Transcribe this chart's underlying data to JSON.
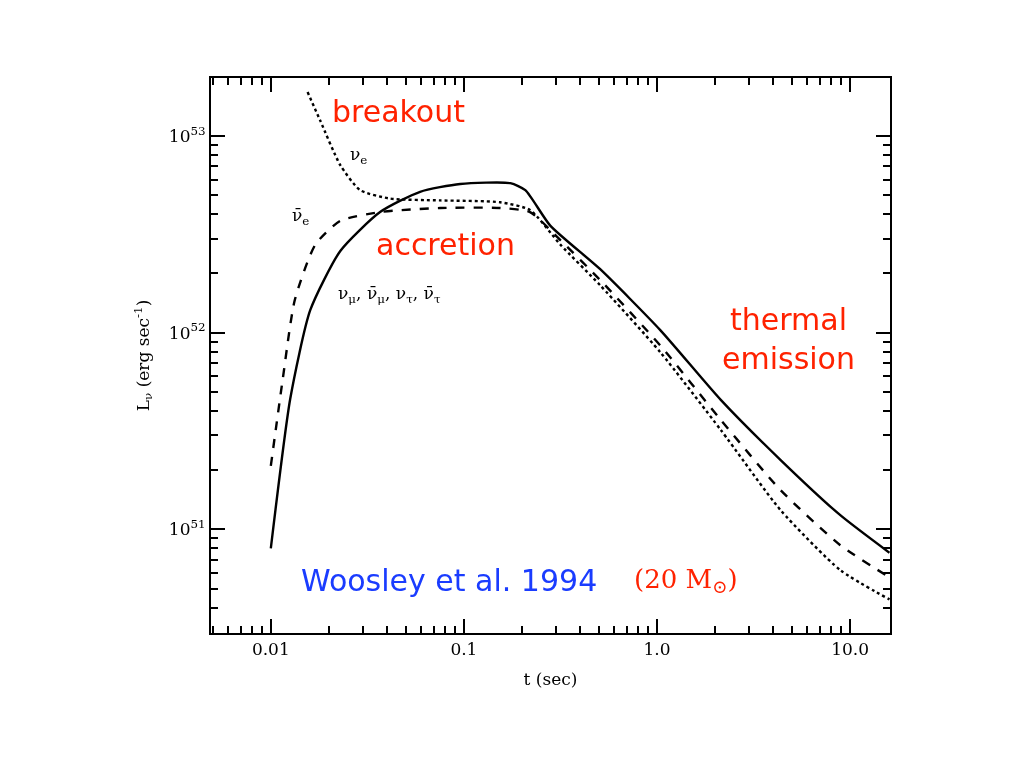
{
  "chart_data": {
    "type": "line",
    "xlabel": "t (sec)",
    "ylabel": "L$_{ν}$ (erg sec$^{-1}$)",
    "log": "xy",
    "legend": false,
    "marker": "none",
    "xlim": [
      0.0049,
      16.1
    ],
    "ylim": [
      2.97e+50,
      1.97e+53
    ],
    "xticks": [
      0.01,
      0.1,
      {
        "value": 1,
        "label": "1.0"
      },
      {
        "value": 10,
        "label": "10.0"
      }
    ],
    "yticks": [
      {
        "value": 1e+51,
        "label": "10$^{51}$"
      },
      {
        "value": 1e+52,
        "label": "10$^{52}$"
      },
      {
        "value": 1e+53,
        "label": "10$^{53}$"
      }
    ],
    "series": [
      {
        "name": "ν$_{e}$",
        "color": "#000000",
        "line_style": "dotted",
        "x": [
          0.0155,
          0.018,
          0.0229,
          0.029,
          0.0415,
          0.0753,
          0.154,
          0.22,
          0.316,
          0.508,
          1.04,
          2.14,
          4.37,
          8.9,
          16.0
        ],
        "values": [
          1.67e+53,
          1.2e+53,
          7.1e+52,
          5.3e+52,
          4.8e+52,
          4.7e+52,
          4.6e+52,
          4.2e+52,
          2.8e+52,
          1.74e+52,
          7.95e+51,
          3.2e+51,
          1.25e+51,
          6.2e+50,
          4.4e+50
        ]
      },
      {
        "name": "ν̄$_{e}$",
        "color": "#000000",
        "line_style": "dashed",
        "x": [
          0.01,
          0.0115,
          0.0133,
          0.017,
          0.0229,
          0.0368,
          0.0753,
          0.154,
          0.22,
          0.316,
          0.508,
          1.04,
          2.14,
          4.37,
          8.9,
          16.0
        ],
        "values": [
          2.1e+51,
          5.7e+51,
          1.46e+52,
          2.8e+52,
          3.7e+52,
          4.1e+52,
          4.3e+52,
          4.3e+52,
          4.1e+52,
          2.95e+52,
          1.85e+52,
          8.6e+51,
          3.6e+51,
          1.58e+51,
          8.3e+50,
          5.7e+50
        ]
      },
      {
        "name": "ν$_{μ}$, ν̄$_{μ}$, ν$_{τ}$, ν̄$_{τ}$",
        "color": "#000000",
        "line_style": "solid",
        "x": [
          0.01,
          0.0126,
          0.016,
          0.0229,
          0.0368,
          0.0593,
          0.0957,
          0.174,
          0.208,
          0.28,
          0.508,
          1.04,
          2.14,
          4.37,
          8.9,
          16.0
        ],
        "values": [
          8e+50,
          4.6e+51,
          1.3e+52,
          2.6e+52,
          4.1e+52,
          5.2e+52,
          5.7e+52,
          5.75e+52,
          5.3e+52,
          3.5e+52,
          2.1e+52,
          1.03e+52,
          4.55e+51,
          2.25e+51,
          1.18e+51,
          7.6e+50
        ]
      }
    ],
    "annotations": [
      "breakout",
      "accretion",
      "thermal emission",
      "Woosley et al. 1994",
      "(20 M$_{⊙}$)"
    ]
  }
}
